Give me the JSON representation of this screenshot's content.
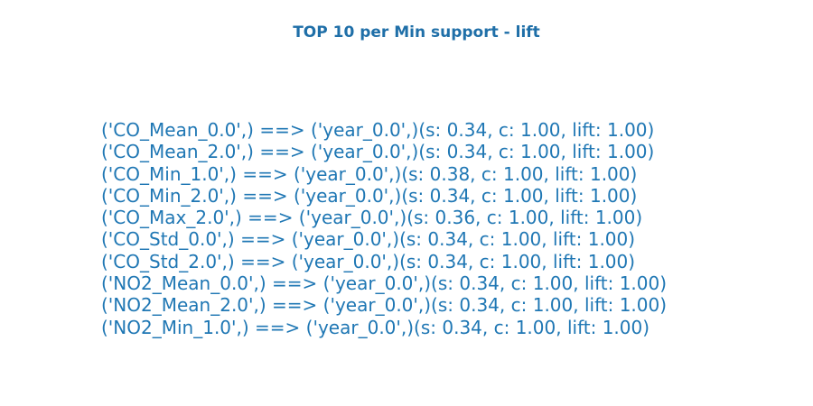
{
  "colors": {
    "text": "#1f77b4",
    "title": "#1f6fa8",
    "background": "#ffffff"
  },
  "title": "TOP 10 per Min support - lift",
  "rules": [
    "('CO_Mean_0.0',) ==> ('year_0.0',)(s: 0.34, c: 1.00, lift: 1.00)",
    "('CO_Mean_2.0',) ==> ('year_0.0',)(s: 0.34, c: 1.00, lift: 1.00)",
    "('CO_Min_1.0',) ==> ('year_0.0',)(s: 0.38, c: 1.00, lift: 1.00)",
    "('CO_Min_2.0',) ==> ('year_0.0',)(s: 0.34, c: 1.00, lift: 1.00)",
    "('CO_Max_2.0',) ==> ('year_0.0',)(s: 0.36, c: 1.00, lift: 1.00)",
    "('CO_Std_0.0',) ==> ('year_0.0',)(s: 0.34, c: 1.00, lift: 1.00)",
    "('CO_Std_2.0',) ==> ('year_0.0',)(s: 0.34, c: 1.00, lift: 1.00)",
    "('NO2_Mean_0.0',) ==> ('year_0.0',)(s: 0.34, c: 1.00, lift: 1.00)",
    "('NO2_Mean_2.0',) ==> ('year_0.0',)(s: 0.34, c: 1.00, lift: 1.00)",
    "('NO2_Min_1.0',) ==> ('year_0.0',)(s: 0.34, c: 1.00, lift: 1.00)"
  ]
}
